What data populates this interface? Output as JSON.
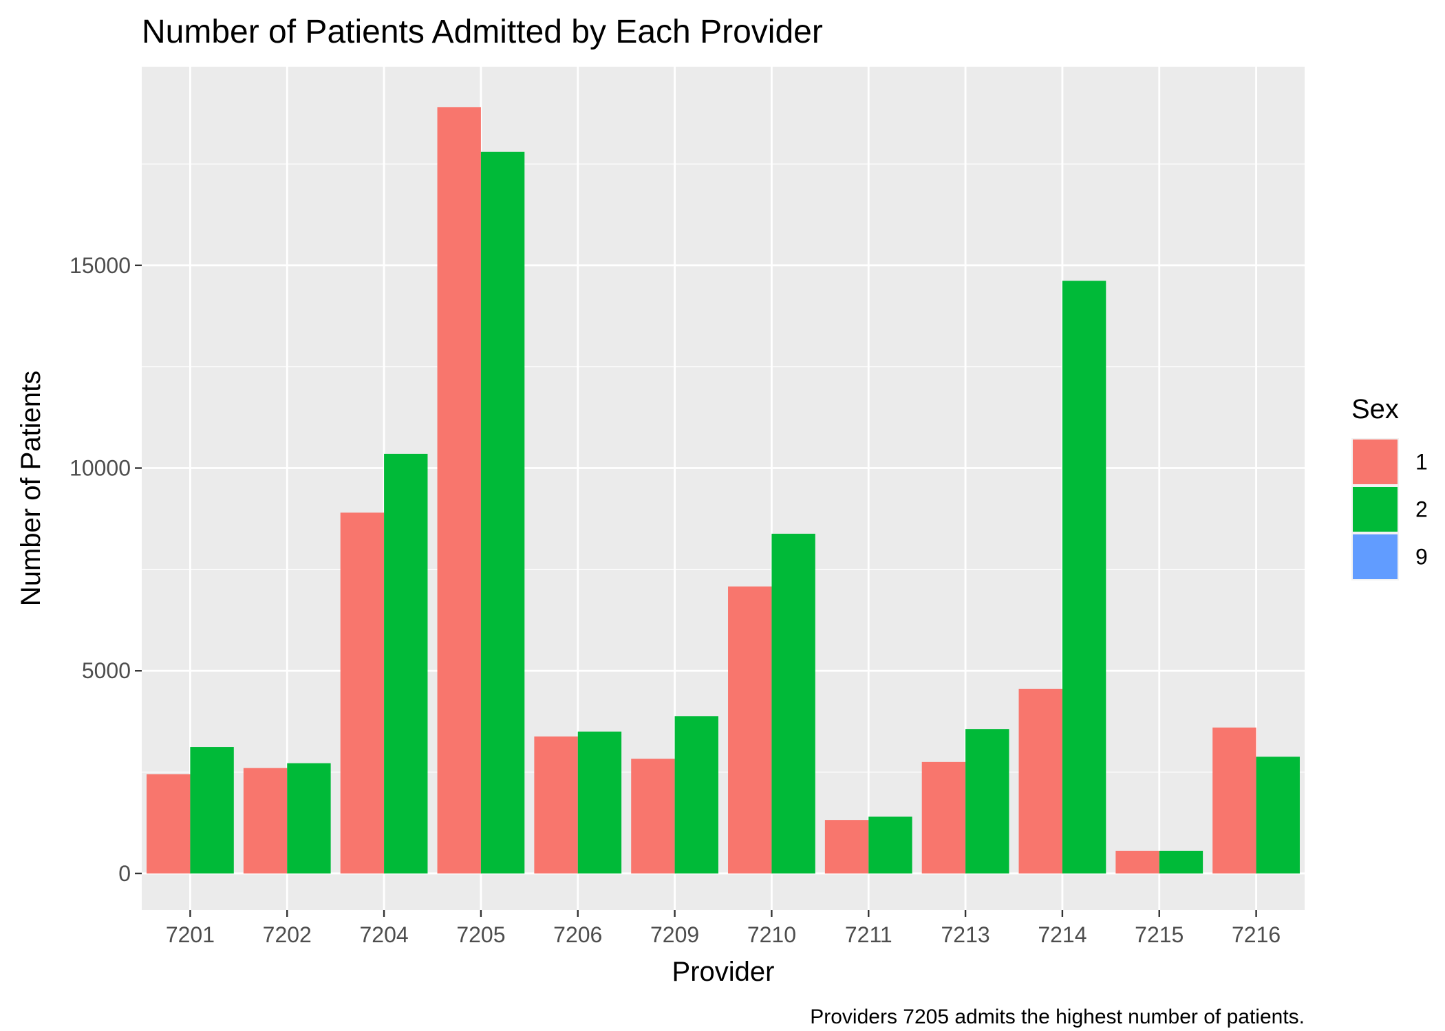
{
  "chart_data": {
    "type": "bar",
    "title": "Number of Patients Admitted by Each Provider",
    "xlabel": "Provider",
    "ylabel": "Number of Patients",
    "caption": "Providers 7205 admits the highest number of patients.",
    "categories": [
      "7201",
      "7202",
      "7204",
      "7205",
      "7206",
      "7209",
      "7210",
      "7211",
      "7213",
      "7214",
      "7215",
      "7216"
    ],
    "series": [
      {
        "name": "1",
        "color": "#F8766D",
        "values": [
          2450,
          2600,
          8900,
          18900,
          3380,
          2830,
          7080,
          1320,
          2750,
          4550,
          560,
          3600
        ]
      },
      {
        "name": "2",
        "color": "#00BA38",
        "values": [
          3120,
          2720,
          10350,
          17800,
          3500,
          3880,
          8380,
          1400,
          3560,
          14620,
          560,
          2880
        ]
      },
      {
        "name": "9",
        "color": "#619CFF",
        "values": [
          0,
          0,
          0,
          0,
          0,
          0,
          0,
          0,
          0,
          0,
          0,
          0
        ]
      }
    ],
    "ylim": [
      -900,
      19900
    ],
    "yticks": [
      0,
      5000,
      10000,
      15000
    ],
    "ytick_labels": [
      "0",
      "5000",
      "10000",
      "15000"
    ],
    "grid": true,
    "background": "#EBEBEB",
    "legend": {
      "title": "Sex",
      "position": "right",
      "entries": [
        "1",
        "2",
        "9"
      ]
    }
  }
}
